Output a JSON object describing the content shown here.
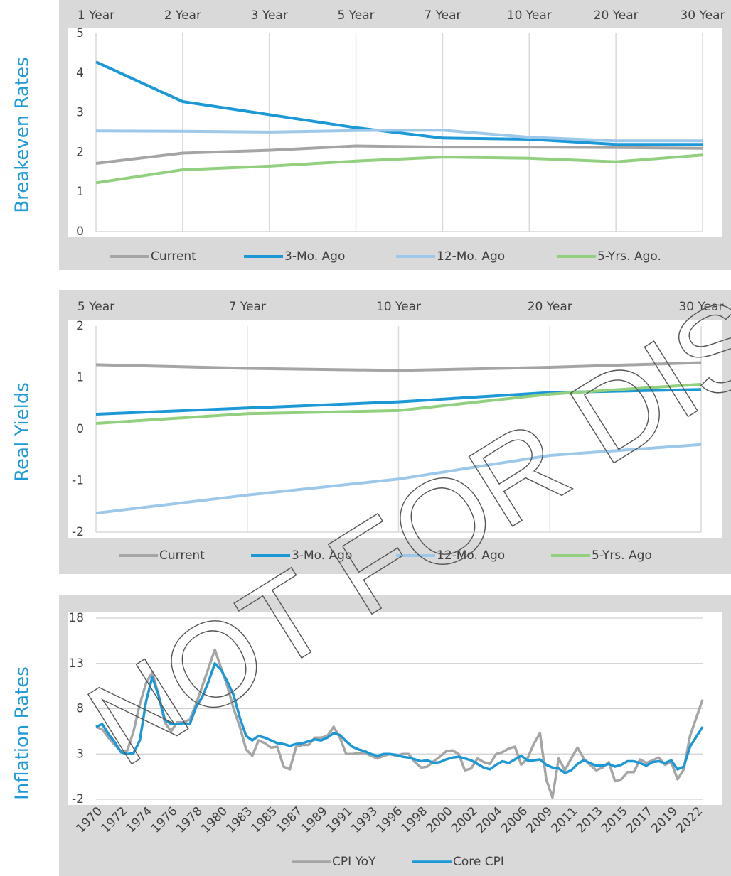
{
  "chart_data": [
    {
      "type": "line",
      "ylabel": "Breakeven Rates",
      "categories": [
        "1 Year",
        "2 Year",
        "3 Year",
        "5 Year",
        "7 Year",
        "10 Year",
        "20 Year",
        "30 Year"
      ],
      "xaxis_position": "top",
      "ylim": [
        0,
        5
      ],
      "yticks": [
        0,
        1,
        2,
        3,
        4,
        5
      ],
      "grid": "x",
      "series": [
        {
          "name": "Current",
          "color": "#a5a5a5",
          "values": [
            1.72,
            1.98,
            2.05,
            2.16,
            2.13,
            2.13,
            2.12,
            2.1
          ]
        },
        {
          "name": "3-Mo. Ago",
          "color": "#1b98d5",
          "values": [
            4.28,
            3.28,
            2.95,
            2.62,
            2.36,
            2.33,
            2.2,
            2.2
          ]
        },
        {
          "name": "12-Mo. Ago",
          "color": "#9dc8ea",
          "values": [
            2.54,
            2.53,
            2.51,
            2.55,
            2.56,
            2.38,
            2.29,
            2.29
          ]
        },
        {
          "name": "5-Yrs. Ago.",
          "color": "#92d07f",
          "values": [
            1.23,
            1.56,
            1.65,
            1.78,
            1.88,
            1.85,
            1.76,
            1.93
          ]
        }
      ]
    },
    {
      "type": "line",
      "ylabel": "Real Yields",
      "categories": [
        "5 Year",
        "7 Year",
        "10 Year",
        "20 Year",
        "30 Year"
      ],
      "xaxis_position": "top",
      "ylim": [
        -2,
        2
      ],
      "yticks": [
        -2,
        -1,
        0,
        1,
        2
      ],
      "grid": "x",
      "series": [
        {
          "name": "Current",
          "color": "#a5a5a5",
          "values": [
            1.25,
            1.18,
            1.14,
            1.2,
            1.29
          ]
        },
        {
          "name": "3-Mo. Ago",
          "color": "#1b98d5",
          "values": [
            0.29,
            0.41,
            0.53,
            0.71,
            0.77
          ]
        },
        {
          "name": "12-Mo. Ago",
          "color": "#9dc8ea",
          "values": [
            -1.63,
            -1.28,
            -0.97,
            -0.51,
            -0.3
          ]
        },
        {
          "name": "5-Yrs. Ago",
          "color": "#92d07f",
          "values": [
            0.11,
            0.3,
            0.36,
            0.68,
            0.87
          ]
        }
      ]
    },
    {
      "type": "line",
      "ylabel": "Inflation Rates",
      "categories": [
        "1970",
        null,
        null,
        null,
        "1972",
        null,
        null,
        null,
        "1974",
        null,
        null,
        null,
        "1976",
        null,
        null,
        null,
        "1978",
        null,
        null,
        null,
        "1980",
        null,
        null,
        null,
        "1983",
        null,
        null,
        null,
        "1985",
        null,
        null,
        null,
        "1987",
        null,
        null,
        null,
        "1989",
        null,
        null,
        null,
        "1991",
        null,
        null,
        null,
        "1993",
        null,
        null,
        null,
        "1996",
        null,
        null,
        null,
        "1998",
        null,
        null,
        null,
        "2000",
        null,
        null,
        null,
        "2002",
        null,
        null,
        null,
        "2004",
        null,
        null,
        null,
        "2006",
        null,
        null,
        null,
        "2009",
        null,
        null,
        null,
        "2011",
        null,
        null,
        null,
        "2013",
        null,
        null,
        null,
        "2015",
        null,
        null,
        null,
        "2017",
        null,
        null,
        null,
        "2019",
        null,
        null,
        null,
        "2022",
        null
      ],
      "xaxis_position": "bottom",
      "xlabel_rotation": -45,
      "ylim": [
        -2,
        18
      ],
      "yticks": [
        -2,
        3,
        8,
        13,
        18
      ],
      "grid": "y",
      "series": [
        {
          "name": "CPI YoY",
          "color": "#a5a5a5",
          "values": [
            6.0,
            5.7,
            4.8,
            4.0,
            3.3,
            3.4,
            5.5,
            8.5,
            10.8,
            12.0,
            9.5,
            6.5,
            5.5,
            6.5,
            6.5,
            6.8,
            8.5,
            10.5,
            12.5,
            14.5,
            12.5,
            10.5,
            8.0,
            6.0,
            3.5,
            2.8,
            4.5,
            4.2,
            3.7,
            3.8,
            1.6,
            1.3,
            3.8,
            4.0,
            4.0,
            4.8,
            4.8,
            5.0,
            6.0,
            4.8,
            3.0,
            3.0,
            3.1,
            3.1,
            2.8,
            2.5,
            2.8,
            3.0,
            2.8,
            3.0,
            3.0,
            2.1,
            1.5,
            1.6,
            2.2,
            2.7,
            3.3,
            3.4,
            3.0,
            1.2,
            1.4,
            2.5,
            2.1,
            1.9,
            3.0,
            3.2,
            3.6,
            3.8,
            1.8,
            2.5,
            4.1,
            5.3,
            0.2,
            -1.8,
            2.5,
            1.2,
            2.5,
            3.7,
            2.5,
            1.8,
            1.2,
            1.5,
            2.1,
            0.0,
            0.2,
            1.0,
            1.0,
            2.4,
            2.0,
            2.3,
            2.6,
            1.8,
            2.1,
            0.2,
            1.3,
            5.0,
            7.0,
            9.0
          ]
        },
        {
          "name": "Core CPI",
          "color": "#1b98d5",
          "values": [
            6.0,
            6.3,
            5.2,
            4.3,
            3.2,
            3.0,
            3.1,
            4.5,
            8.8,
            11.5,
            9.5,
            6.8,
            6.3,
            6.3,
            6.4,
            6.3,
            8.2,
            9.3,
            11.0,
            13.0,
            12.3,
            11.0,
            9.5,
            7.0,
            5.0,
            4.5,
            5.0,
            4.8,
            4.5,
            4.2,
            4.1,
            3.9,
            4.1,
            4.2,
            4.4,
            4.6,
            4.5,
            4.8,
            5.3,
            5.1,
            4.4,
            3.8,
            3.5,
            3.3,
            3.0,
            2.8,
            3.0,
            3.0,
            2.9,
            2.7,
            2.6,
            2.4,
            2.2,
            2.3,
            2.0,
            2.1,
            2.4,
            2.6,
            2.7,
            2.5,
            2.3,
            1.9,
            1.5,
            1.3,
            1.8,
            2.2,
            2.0,
            2.4,
            2.8,
            2.3,
            2.3,
            2.4,
            1.8,
            1.5,
            1.4,
            0.9,
            1.2,
            1.9,
            2.3,
            2.0,
            1.7,
            1.7,
            1.9,
            1.6,
            1.8,
            2.2,
            2.2,
            2.0,
            1.7,
            2.1,
            2.2,
            2.0,
            2.3,
            1.3,
            1.6,
            3.8,
            4.9,
            6.0
          ]
        }
      ]
    }
  ],
  "watermark": "NOT FOR DIST"
}
